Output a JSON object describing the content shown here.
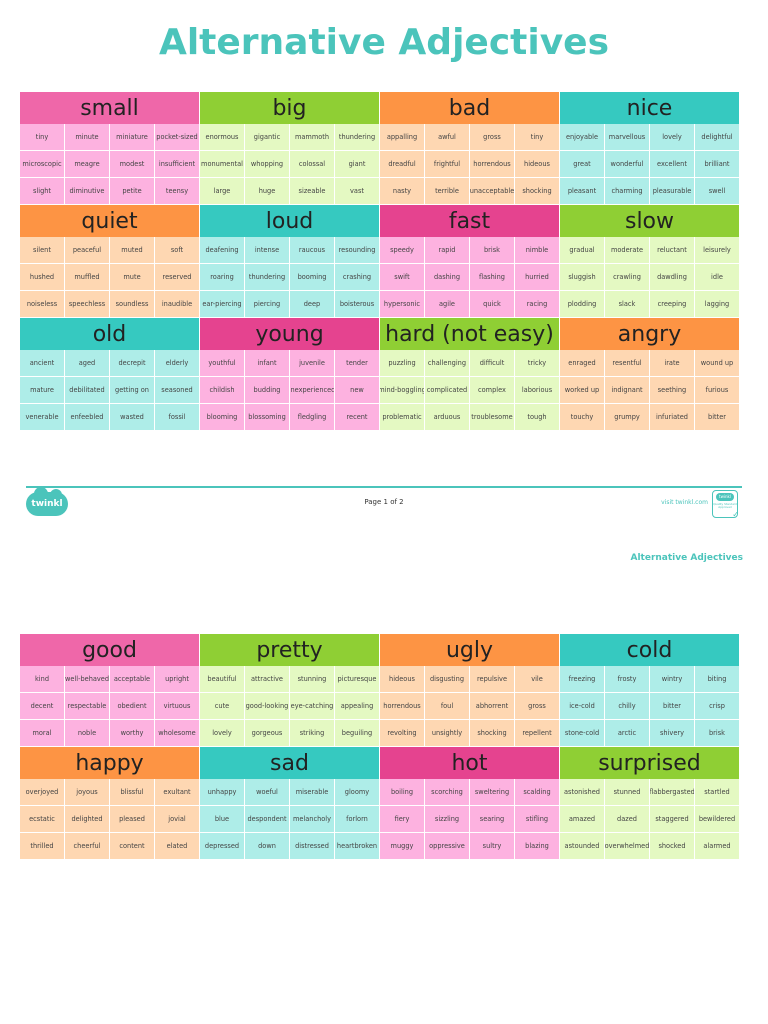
{
  "title": "Alternative Adjectives",
  "colors": {
    "title": "#4bc4bb",
    "pink_header": "#ef67a9",
    "pink_cell": "#fdb2e0",
    "magenta_header": "#e5438f",
    "magenta_cell": "#fdb2e0",
    "green_header": "#8fcf34",
    "green_cell": "#e4f9c2",
    "orange_header": "#fd9444",
    "orange_cell": "#fed7b2",
    "teal_header": "#36c9c0",
    "teal_cell": "#aeede8"
  },
  "page1": {
    "blocks": [
      {
        "word": "small",
        "color": "pink",
        "synonyms": [
          "tiny",
          "minute",
          "miniature",
          "pocket-sized",
          "microscopic",
          "meagre",
          "modest",
          "insufficient",
          "slight",
          "diminutive",
          "petite",
          "teensy"
        ]
      },
      {
        "word": "big",
        "color": "green",
        "synonyms": [
          "enormous",
          "gigantic",
          "mammoth",
          "thundering",
          "monumental",
          "whopping",
          "colossal",
          "giant",
          "large",
          "huge",
          "sizeable",
          "vast"
        ]
      },
      {
        "word": "bad",
        "color": "orange",
        "synonyms": [
          "appalling",
          "awful",
          "gross",
          "tiny",
          "dreadful",
          "frightful",
          "horrendous",
          "hideous",
          "nasty",
          "terrible",
          "unacceptable",
          "shocking"
        ]
      },
      {
        "word": "nice",
        "color": "teal",
        "synonyms": [
          "enjoyable",
          "marvellous",
          "lovely",
          "delightful",
          "great",
          "wonderful",
          "excellent",
          "brilliant",
          "pleasant",
          "charming",
          "pleasurable",
          "swell"
        ]
      },
      {
        "word": "quiet",
        "color": "orange",
        "synonyms": [
          "silent",
          "peaceful",
          "muted",
          "soft",
          "hushed",
          "muffled",
          "mute",
          "reserved",
          "noiseless",
          "speechless",
          "soundless",
          "inaudible"
        ]
      },
      {
        "word": "loud",
        "color": "teal",
        "synonyms": [
          "deafening",
          "intense",
          "raucous",
          "resounding",
          "roaring",
          "thundering",
          "booming",
          "crashing",
          "ear-piercing",
          "piercing",
          "deep",
          "boisterous"
        ]
      },
      {
        "word": "fast",
        "color": "magenta",
        "synonyms": [
          "speedy",
          "rapid",
          "brisk",
          "nimble",
          "swift",
          "dashing",
          "flashing",
          "hurried",
          "hypersonic",
          "agile",
          "quick",
          "racing"
        ]
      },
      {
        "word": "slow",
        "color": "green",
        "synonyms": [
          "gradual",
          "moderate",
          "reluctant",
          "leisurely",
          "sluggish",
          "crawling",
          "dawdling",
          "idle",
          "plodding",
          "slack",
          "creeping",
          "lagging"
        ]
      },
      {
        "word": "old",
        "color": "teal",
        "synonyms": [
          "ancient",
          "aged",
          "decrepit",
          "elderly",
          "mature",
          "debilitated",
          "getting on",
          "seasoned",
          "venerable",
          "enfeebled",
          "wasted",
          "fossil"
        ]
      },
      {
        "word": "young",
        "color": "magenta",
        "synonyms": [
          "youthful",
          "infant",
          "juvenile",
          "tender",
          "childish",
          "budding",
          "inexperienced",
          "new",
          "blooming",
          "blossoming",
          "fledgling",
          "recent"
        ]
      },
      {
        "word": "hard (not easy)",
        "color": "green",
        "synonyms": [
          "puzzling",
          "challenging",
          "difficult",
          "tricky",
          "mind-boggling",
          "complicated",
          "complex",
          "laborious",
          "problematic",
          "arduous",
          "troublesome",
          "tough"
        ]
      },
      {
        "word": "angry",
        "color": "orange",
        "synonyms": [
          "enraged",
          "resentful",
          "irate",
          "wound up",
          "worked up",
          "indignant",
          "seething",
          "furious",
          "touchy",
          "grumpy",
          "infuriated",
          "bitter"
        ]
      }
    ]
  },
  "footer": {
    "logo_text": "twinkl",
    "page_label": "Page 1 of 2",
    "visit_label": "visit twinkl.com",
    "badge_logo": "twinkl",
    "badge_text": "Quality Standard Approved"
  },
  "page2": {
    "running_head": "Alternative Adjectives",
    "blocks": [
      {
        "word": "good",
        "color": "pink",
        "synonyms": [
          "kind",
          "well-behaved",
          "acceptable",
          "upright",
          "decent",
          "respectable",
          "obedient",
          "virtuous",
          "moral",
          "noble",
          "worthy",
          "wholesome"
        ]
      },
      {
        "word": "pretty",
        "color": "green",
        "synonyms": [
          "beautiful",
          "attractive",
          "stunning",
          "picturesque",
          "cute",
          "good-looking",
          "eye-catching",
          "appealing",
          "lovely",
          "gorgeous",
          "striking",
          "beguiling"
        ]
      },
      {
        "word": "ugly",
        "color": "orange",
        "synonyms": [
          "hideous",
          "disgusting",
          "repulsive",
          "vile",
          "horrendous",
          "foul",
          "abhorrent",
          "gross",
          "revolting",
          "unsightly",
          "shocking",
          "repellent"
        ]
      },
      {
        "word": "cold",
        "color": "teal",
        "synonyms": [
          "freezing",
          "frosty",
          "wintry",
          "biting",
          "ice-cold",
          "chilly",
          "bitter",
          "crisp",
          "stone-cold",
          "arctic",
          "shivery",
          "brisk"
        ]
      },
      {
        "word": "happy",
        "color": "orange",
        "synonyms": [
          "overjoyed",
          "joyous",
          "blissful",
          "exultant",
          "ecstatic",
          "delighted",
          "pleased",
          "jovial",
          "thrilled",
          "cheerful",
          "content",
          "elated"
        ]
      },
      {
        "word": "sad",
        "color": "teal",
        "synonyms": [
          "unhappy",
          "woeful",
          "miserable",
          "gloomy",
          "blue",
          "despondent",
          "melancholy",
          "forlorn",
          "depressed",
          "down",
          "distressed",
          "heartbroken"
        ]
      },
      {
        "word": "hot",
        "color": "magenta",
        "synonyms": [
          "boiling",
          "scorching",
          "sweltering",
          "scalding",
          "fiery",
          "sizzling",
          "searing",
          "stifling",
          "muggy",
          "oppressive",
          "sultry",
          "blazing"
        ]
      },
      {
        "word": "surprised",
        "color": "green",
        "synonyms": [
          "astonished",
          "stunned",
          "flabbergasted",
          "startled",
          "amazed",
          "dazed",
          "staggered",
          "bewildered",
          "astounded",
          "overwhelmed",
          "shocked",
          "alarmed"
        ]
      }
    ]
  }
}
